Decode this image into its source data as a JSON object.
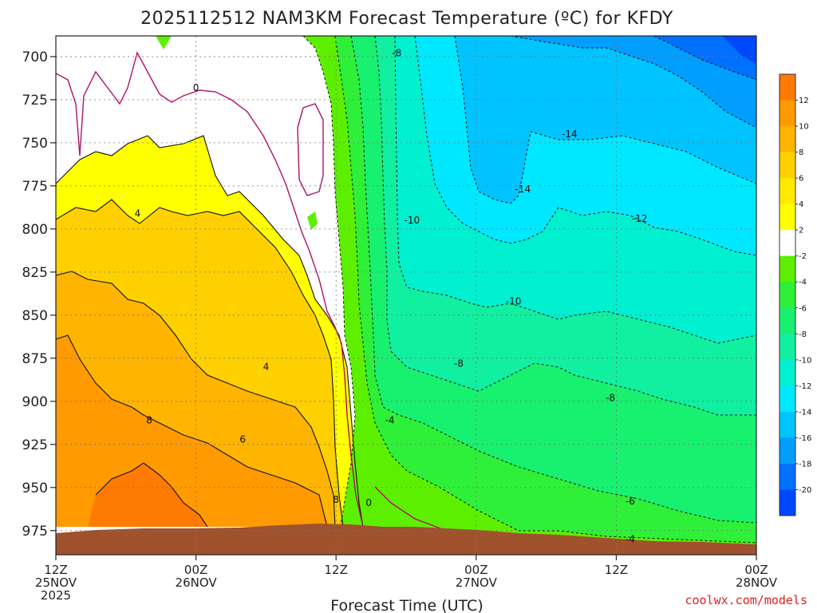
{
  "chart_data": {
    "type": "heatmap",
    "title": "2025112512 NAM3KM Forecast Temperature (ºC) for KFDY",
    "xlabel": "Forecast Time (UTC)",
    "ylabel": "",
    "credit": "coolwx.com/models",
    "x_ticks": [
      {
        "hour": 0,
        "line1": "12Z",
        "line2": "25NOV",
        "line3": "2025"
      },
      {
        "hour": 12,
        "line1": "00Z",
        "line2": "26NOV",
        "line3": ""
      },
      {
        "hour": 24,
        "line1": "12Z",
        "line2": "",
        "line3": ""
      },
      {
        "hour": 36,
        "line1": "00Z",
        "line2": "27NOV",
        "line3": ""
      },
      {
        "hour": 48,
        "line1": "12Z",
        "line2": "",
        "line3": ""
      },
      {
        "hour": 60,
        "line1": "00Z",
        "line2": "28NOV",
        "line3": ""
      }
    ],
    "xlim_hours": [
      0,
      60
    ],
    "y_ticks": [
      700,
      725,
      750,
      775,
      800,
      825,
      850,
      875,
      900,
      925,
      950,
      975
    ],
    "ylim_hPa": [
      989,
      688
    ],
    "colorbar_labels": [
      "12",
      "10",
      "8",
      "6",
      "4",
      "2",
      "-2",
      "-4",
      "-6",
      "-8",
      "-10",
      "-12",
      "-14",
      "-16",
      "-18",
      "-20"
    ],
    "colorbar_colors": [
      "#ff7a00",
      "#ff9a00",
      "#ffb400",
      "#ffd000",
      "#ffea00",
      "#ffff00",
      "#ffffff",
      "#5cf000",
      "#2ef038",
      "#18f070",
      "#10f0a0",
      "#00f0d0",
      "#00e8ff",
      "#00c4ff",
      "#009eff",
      "#0070ff",
      "#0048ff"
    ],
    "contour_labels": [
      {
        "t": -8,
        "h": 29.2,
        "p": 698
      },
      {
        "t": 0,
        "h": 12.0,
        "p": 718
      },
      {
        "t": -14,
        "h": 44.0,
        "p": 745
      },
      {
        "t": -14,
        "h": 40.0,
        "p": 777
      },
      {
        "t": 4,
        "h": 7.0,
        "p": 791
      },
      {
        "t": -10,
        "h": 30.5,
        "p": 795
      },
      {
        "t": -12,
        "h": 50.0,
        "p": 794
      },
      {
        "t": -10,
        "h": 39.2,
        "p": 842
      },
      {
        "t": 4,
        "h": 18.0,
        "p": 880
      },
      {
        "t": -8,
        "h": 34.5,
        "p": 878
      },
      {
        "t": -8,
        "h": 47.5,
        "p": 898
      },
      {
        "t": 8,
        "h": 8.0,
        "p": 911
      },
      {
        "t": -4,
        "h": 28.6,
        "p": 911
      },
      {
        "t": 6,
        "h": 16.0,
        "p": 922
      },
      {
        "t": 8,
        "h": 24.0,
        "p": 957
      },
      {
        "t": 0,
        "h": 26.8,
        "p": 959
      },
      {
        "t": -6,
        "h": 49.2,
        "p": 958
      },
      {
        "t": -4,
        "h": 49.2,
        "p": 980
      }
    ]
  }
}
